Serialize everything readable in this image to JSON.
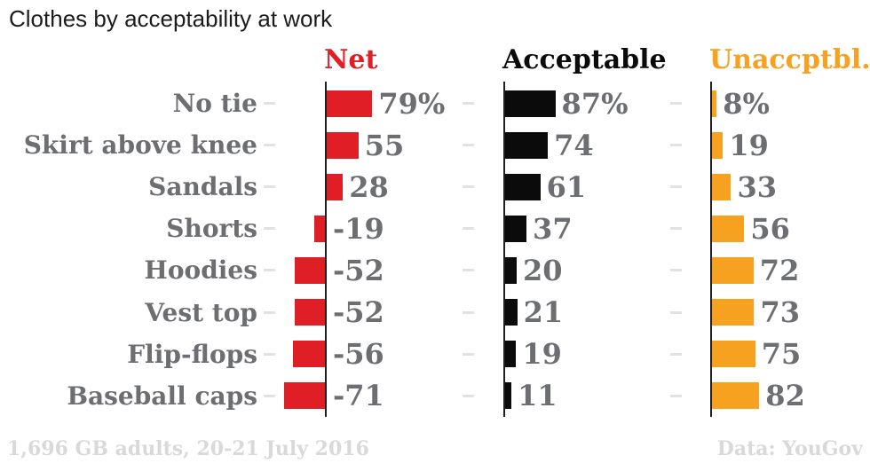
{
  "title": "Clothes by acceptability at work",
  "footer": {
    "note": "1,696 GB adults, 20-21 July 2016",
    "source": "Data: YouGov"
  },
  "colors": {
    "net_red": "#e01e26",
    "acceptable_black": "#0b0b0b",
    "unacceptable_orange": "#f7a120",
    "label_gray": "#6d6e71",
    "footer_gray": "#d9d9d9",
    "axis_black": "#231f20",
    "tick_gray": "#e2e2e2"
  },
  "chart_data": {
    "type": "bar",
    "orientation": "horizontal",
    "title": "Clothes by acceptability at work",
    "categories": [
      "No tie",
      "Skirt above knee",
      "Sandals",
      "Shorts",
      "Hoodies",
      "Vest top",
      "Flip-flops",
      "Baseball caps"
    ],
    "series": [
      {
        "name": "Net",
        "color": "#e01e26",
        "values": [
          79,
          55,
          28,
          -19,
          -52,
          -52,
          -56,
          -71
        ],
        "labels": [
          "79%",
          "55",
          "28",
          "-19",
          "-52",
          "-52",
          "-56",
          "-71"
        ],
        "xlim": [
          -100,
          100
        ]
      },
      {
        "name": "Acceptable",
        "color": "#0b0b0b",
        "values": [
          87,
          74,
          61,
          37,
          20,
          21,
          19,
          11
        ],
        "labels": [
          "87%",
          "74",
          "61",
          "37",
          "20",
          "21",
          "19",
          "11"
        ],
        "xlim": [
          0,
          100
        ]
      },
      {
        "name": "Unaccptbl.",
        "color": "#f7a120",
        "values": [
          8,
          19,
          33,
          56,
          72,
          73,
          75,
          82
        ],
        "labels": [
          "8%",
          "19",
          "33",
          "56",
          "72",
          "73",
          "75",
          "82"
        ],
        "xlim": [
          0,
          100
        ]
      }
    ],
    "value_labels_on": true,
    "grid": "row tick dashes only",
    "legend_position": "column headers above each panel",
    "note": "1,696 GB adults, 20-21 July 2016",
    "source": "Data: YouGov"
  }
}
